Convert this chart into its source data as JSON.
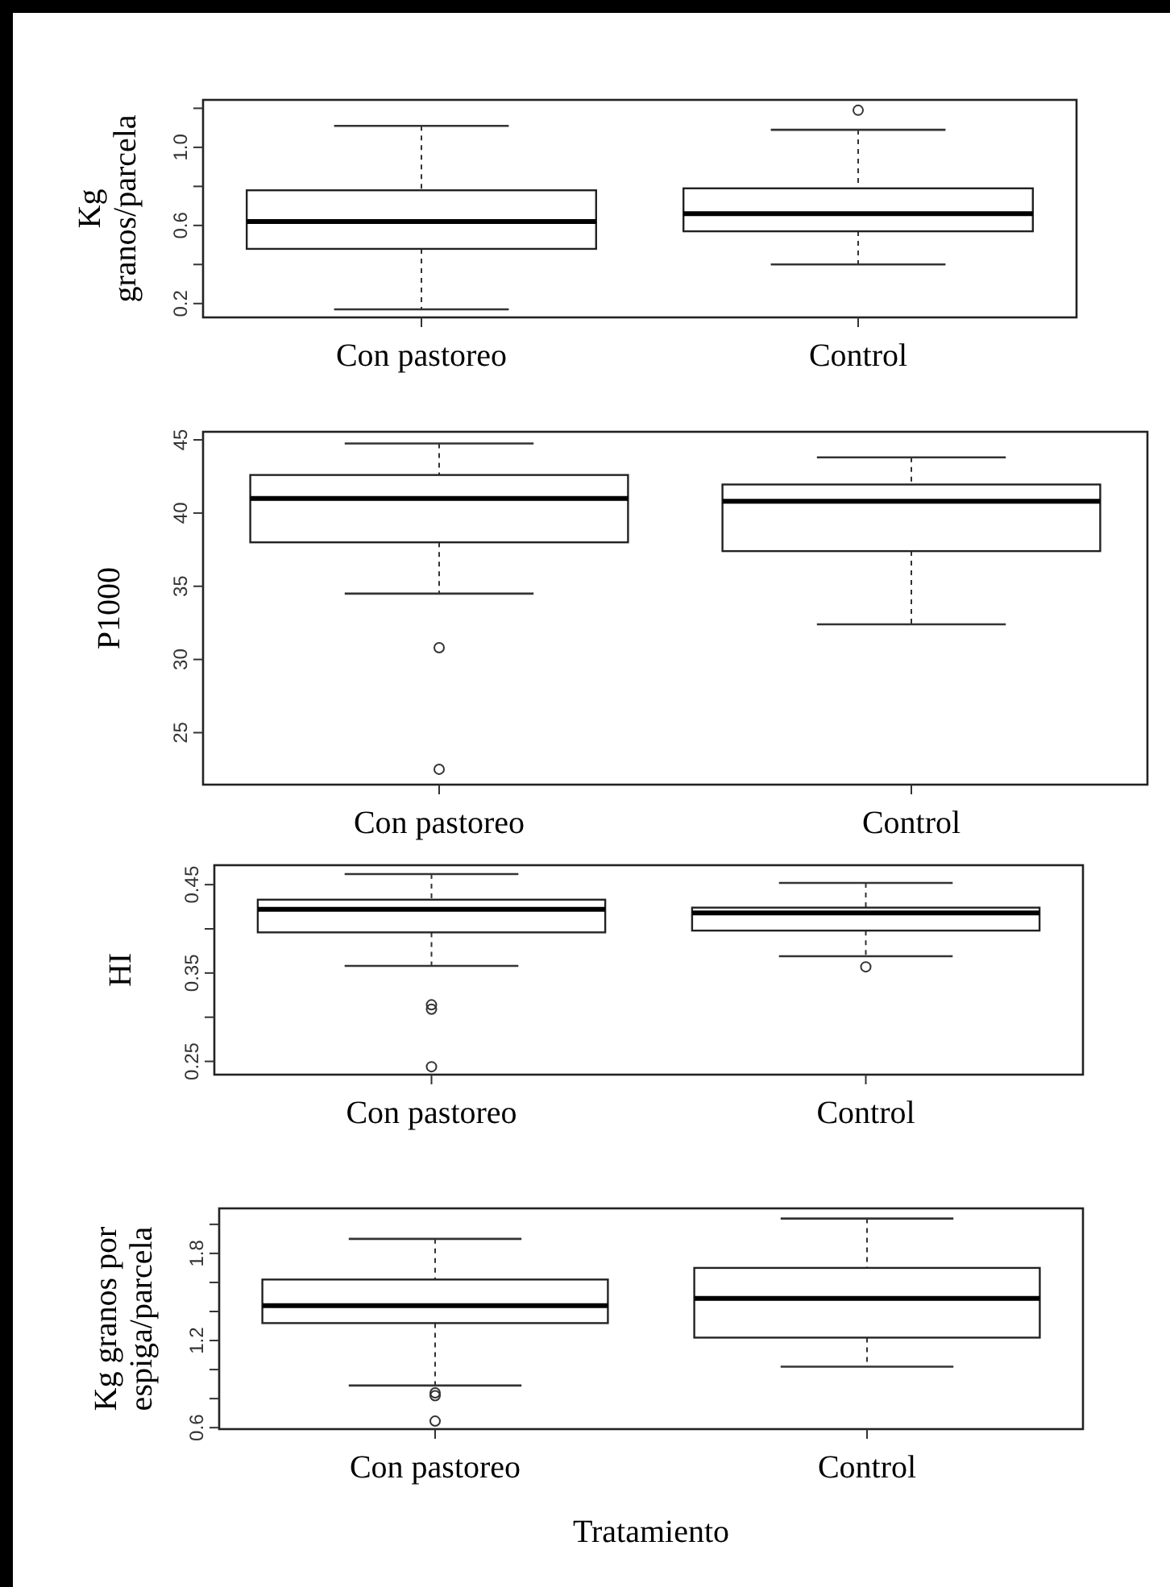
{
  "chart_data": [
    {
      "type": "box",
      "ylabel": "Kg granos/parcela",
      "categories": [
        "Con pastoreo",
        "Control"
      ],
      "ylim": [
        0.129,
        1.243
      ],
      "yticks": [
        {
          "value": 0.2,
          "label": "0.2"
        },
        {
          "value": 0.4,
          "label": null
        },
        {
          "value": 0.6,
          "label": "0.6"
        },
        {
          "value": 0.8,
          "label": null
        },
        {
          "value": 1.0,
          "label": "1.0"
        },
        {
          "value": 1.2,
          "label": null
        }
      ],
      "boxes": [
        {
          "low": 0.17,
          "q1": 0.48,
          "median": 0.62,
          "q3": 0.78,
          "high": 1.11
        },
        {
          "low": 0.4,
          "q1": 0.57,
          "median": 0.66,
          "q3": 0.79,
          "high": 1.09,
          "outliers": [
            1.19
          ]
        }
      ]
    },
    {
      "type": "box",
      "ylabel": "P1000",
      "categories": [
        "Con pastoreo",
        "Control"
      ],
      "ylim": [
        21.45,
        45.55
      ],
      "yticks": [
        25,
        30,
        35,
        40,
        45
      ],
      "boxes": [
        {
          "low": 34.5,
          "q1": 38.0,
          "median": 41.0,
          "q3": 42.6,
          "high": 44.75,
          "outliers": [
            30.8,
            22.5
          ]
        },
        {
          "low": 32.4,
          "q1": 37.4,
          "median": 40.8,
          "q3": 41.95,
          "high": 43.8
        }
      ]
    },
    {
      "type": "box",
      "ylabel": "HI",
      "categories": [
        "Con pastoreo",
        "Control"
      ],
      "ylim": [
        0.235,
        0.472
      ],
      "yticks": [
        0.25,
        {
          "value": 0.3,
          "label": null
        },
        0.35,
        {
          "value": 0.4,
          "label": null
        },
        0.45
      ],
      "boxes": [
        {
          "low": 0.358,
          "q1": 0.396,
          "median": 0.422,
          "q3": 0.433,
          "high": 0.462,
          "outliers": [
            0.314,
            0.309,
            0.244
          ]
        },
        {
          "low": 0.369,
          "q1": 0.398,
          "median": 0.418,
          "q3": 0.424,
          "high": 0.452,
          "outliers": [
            0.357
          ]
        }
      ]
    },
    {
      "type": "box",
      "ylabel": "Kg granos por espiga/parcela",
      "xlabel": "Tratamiento",
      "categories": [
        "Con pastoreo",
        "Control"
      ],
      "ylim": [
        0.59,
        2.11
      ],
      "yticks": [
        0.6,
        {
          "value": 0.8,
          "label": null
        },
        {
          "value": 1.0,
          "label": null
        },
        1.2,
        {
          "value": 1.4,
          "label": null
        },
        {
          "value": 1.6,
          "label": null
        },
        1.8,
        {
          "value": 2.0,
          "label": null
        }
      ],
      "boxes": [
        {
          "low": 0.89,
          "q1": 1.32,
          "median": 1.44,
          "q3": 1.62,
          "high": 1.9,
          "outliers": [
            0.84,
            0.82,
            0.645
          ]
        },
        {
          "low": 1.02,
          "q1": 1.22,
          "median": 1.49,
          "q3": 1.7,
          "high": 2.04
        }
      ]
    }
  ]
}
